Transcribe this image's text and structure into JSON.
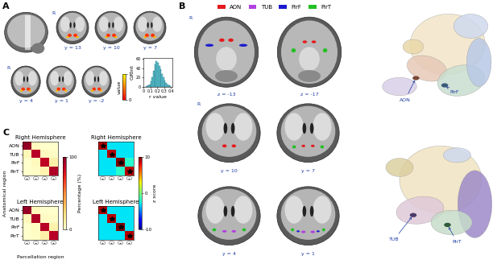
{
  "panels": {
    "A": {
      "label": "A",
      "hemisphere_marks": [
        "R",
        "R"
      ],
      "slices": [
        "y = 13",
        "y = 10",
        "y = 7",
        "y = 4",
        "y = 1",
        "y = -2"
      ],
      "colorbar": {
        "label": "value",
        "range": [
          0,
          1
        ],
        "ticks": [
          0,
          1
        ]
      }
    },
    "B": {
      "label": "B",
      "hemisphere_marks": [
        "R",
        "R"
      ],
      "legend": [
        {
          "name": "AON",
          "color": "#e41a1c"
        },
        {
          "name": "TUB",
          "color": "#b040e0"
        },
        {
          "name": "PirF",
          "color": "#1a1ad0"
        },
        {
          "name": "PirT",
          "color": "#22c022"
        }
      ],
      "axial_slices": [
        "z = -13",
        "z = -17"
      ],
      "coronal_slices": [
        "y = 10",
        "y = 7",
        "y = 4",
        "y = 1"
      ],
      "atlas_top": [
        "AON",
        "PirF"
      ],
      "atlas_bottom": [
        "TUB",
        "PirT"
      ]
    },
    "C": {
      "label": "C",
      "ylabel": "Anatomical region",
      "xlabel": "Parcellation region"
    }
  },
  "chart_data": [
    {
      "type": "histogram",
      "xlabel": "r value",
      "ylabel": "Count",
      "bins": [
        0.04,
        0.06,
        0.08,
        0.1,
        0.12,
        0.14,
        0.16,
        0.18,
        0.2,
        0.22,
        0.24,
        0.26,
        0.28,
        0.3,
        0.32,
        0.34,
        0.36,
        0.38,
        0.4
      ],
      "counts": [
        1,
        3,
        6,
        12,
        20,
        35,
        48,
        55,
        52,
        45,
        38,
        28,
        20,
        14,
        9,
        5,
        3,
        1
      ],
      "color": "#5cc8d4",
      "xlim": [
        0,
        0.42
      ],
      "ylim": [
        0,
        62
      ],
      "xticks": [
        0,
        0.1,
        0.2,
        0.3,
        0.4
      ],
      "yticks": [
        0,
        20,
        40,
        60
      ]
    },
    {
      "type": "heatmap",
      "title": "Right Hemisphere",
      "rows": [
        "AON",
        "TUB",
        "PirF",
        "PirT"
      ],
      "columns": [
        null,
        null,
        null,
        null
      ],
      "cells": [
        [
          96,
          4,
          0,
          0
        ],
        [
          6,
          88,
          4,
          2
        ],
        [
          0,
          4,
          86,
          10
        ],
        [
          0,
          2,
          8,
          90
        ]
      ],
      "zlim": [
        0,
        100
      ],
      "colorbar": {
        "label": "Percentage (%)",
        "ticks": [
          0,
          100
        ]
      }
    },
    {
      "type": "heatmap",
      "title": "Right Hemisphere",
      "tick_labels": false,
      "columns": [
        null,
        null,
        null,
        null
      ],
      "cells": [
        [
          9,
          -3,
          -3,
          -3
        ],
        [
          -3,
          9,
          -3,
          -3
        ],
        [
          -3,
          -3,
          10,
          -2
        ],
        [
          -3,
          -3,
          -2,
          9
        ]
      ],
      "zlim": [
        -10,
        10
      ],
      "colorbar": {
        "label": "z score",
        "ticks": [
          -10,
          0,
          10
        ]
      },
      "marker": "*",
      "significant": [
        [
          true,
          false,
          false,
          false
        ],
        [
          false,
          true,
          false,
          false
        ],
        [
          false,
          false,
          true,
          false
        ],
        [
          false,
          false,
          false,
          true
        ]
      ]
    },
    {
      "type": "heatmap",
      "title": "Left Hemisphere",
      "rows": [
        "AON",
        "TUB",
        "PirF",
        "PirT"
      ],
      "columns": [
        null,
        null,
        null,
        null
      ],
      "cells": [
        [
          95,
          5,
          0,
          0
        ],
        [
          5,
          90,
          3,
          2
        ],
        [
          0,
          3,
          88,
          9
        ],
        [
          0,
          2,
          10,
          88
        ]
      ],
      "zlim": [
        0,
        100
      ]
    },
    {
      "type": "heatmap",
      "title": "Left Hemisphere",
      "tick_labels": false,
      "columns": [
        null,
        null,
        null,
        null
      ],
      "cells": [
        [
          9,
          -3,
          -3,
          -3
        ],
        [
          -3,
          9,
          -3,
          -3
        ],
        [
          -3,
          -3,
          10,
          -3
        ],
        [
          -3,
          -3,
          -3,
          9
        ]
      ],
      "zlim": [
        -10,
        10
      ],
      "marker": "*",
      "significant": [
        [
          true,
          false,
          false,
          false
        ],
        [
          false,
          true,
          false,
          false
        ],
        [
          false,
          false,
          true,
          false
        ],
        [
          false,
          false,
          false,
          true
        ]
      ]
    }
  ]
}
